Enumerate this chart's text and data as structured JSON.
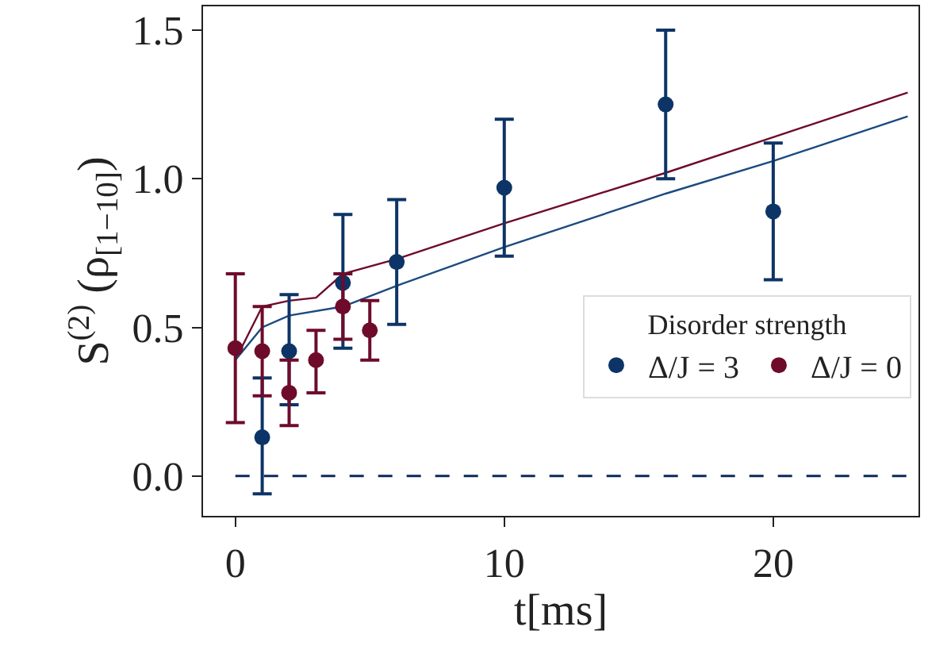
{
  "chart_data": {
    "type": "scatter",
    "xlabel": "t[ms]",
    "ylabel": "S$^{(2)}$ (ρ$_{[1−10]}$)",
    "legend_title": "Disorder strength",
    "xlim": [
      -1.2,
      25.4
    ],
    "ylim": [
      -0.134,
      1.58
    ],
    "xticks": [
      0,
      10,
      20
    ],
    "yticks": [
      {
        "value": 0,
        "label": "0.0"
      },
      0.5,
      {
        "value": 1,
        "label": "1.0"
      },
      1.5
    ],
    "legend": "bottom right",
    "marker": "circle",
    "series": [
      {
        "type": "line",
        "marker": "none",
        "color": "#6e0b2b",
        "x": [
          0,
          1,
          2,
          3,
          4,
          6,
          10,
          16,
          20,
          25
        ],
        "values": [
          0.39,
          0.57,
          0.59,
          0.6,
          0.68,
          0.73,
          0.85,
          1.02,
          1.14,
          1.29
        ]
      },
      {
        "type": "line",
        "marker": "none",
        "color": "#1c4a80",
        "x": [
          0,
          1,
          2,
          4,
          6,
          10,
          16,
          20,
          25
        ],
        "values": [
          0.39,
          0.5,
          0.54,
          0.57,
          0.64,
          0.77,
          0.95,
          1.06,
          1.21
        ]
      },
      {
        "type": "line",
        "marker": "none",
        "color": "#0d2a5c",
        "line_style": "dashed",
        "x": [
          0,
          25
        ],
        "values": [
          0,
          0
        ]
      },
      {
        "name": "Δ/J = 3",
        "color": "#0d3466",
        "x": [
          1,
          2,
          4,
          6,
          10,
          16,
          20
        ],
        "values": [
          0.13,
          0.42,
          0.65,
          0.72,
          0.97,
          1.25,
          0.89
        ],
        "errors": [
          [
            -0.06,
            0.33
          ],
          [
            0.24,
            0.61
          ],
          [
            0.43,
            0.88
          ],
          [
            0.51,
            0.93
          ],
          [
            0.74,
            1.2
          ],
          [
            1.0,
            1.5
          ],
          [
            0.66,
            1.12
          ]
        ]
      },
      {
        "name": "Δ/J = 0",
        "color": "#6e0b2b",
        "x": [
          0,
          1,
          2,
          3,
          4,
          5
        ],
        "values": [
          0.43,
          0.42,
          0.28,
          0.39,
          0.57,
          0.49
        ],
        "errors": [
          [
            0.18,
            0.68
          ],
          [
            0.27,
            0.57
          ],
          [
            0.17,
            0.39
          ],
          [
            0.28,
            0.49
          ],
          [
            0.46,
            0.68
          ],
          [
            0.39,
            0.59
          ]
        ]
      }
    ]
  }
}
